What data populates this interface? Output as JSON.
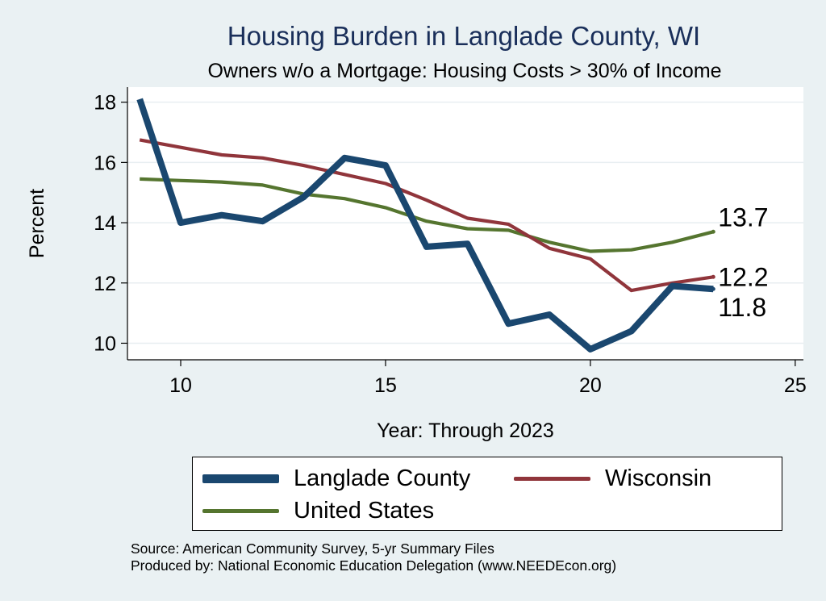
{
  "chart_data": {
    "type": "line",
    "title": "Housing Burden in Langlade County, WI",
    "subtitle": "Owners w/o a Mortgage: Housing Costs > 30% of Income",
    "xlabel": "Year: Through 2023",
    "ylabel": "Percent",
    "xlim": [
      8.7,
      25.2
    ],
    "ylim": [
      9.45,
      18.5
    ],
    "xticks": [
      10,
      15,
      20,
      25
    ],
    "yticks": [
      10,
      12,
      14,
      16,
      18
    ],
    "grid": true,
    "legend_position": "bottom",
    "series": [
      {
        "name": "Langlade County",
        "color": "#1a476f",
        "x": [
          9,
          10,
          11,
          12,
          13,
          14,
          15,
          16,
          17,
          18,
          19,
          20,
          21,
          22,
          23
        ],
        "values": [
          18.1,
          14.0,
          14.25,
          14.05,
          14.85,
          16.15,
          15.9,
          13.2,
          13.3,
          10.65,
          10.95,
          9.8,
          10.4,
          11.9,
          11.8
        ],
        "end_label": "11.8"
      },
      {
        "name": "Wisconsin",
        "color": "#90353b",
        "x": [
          9,
          10,
          11,
          12,
          13,
          14,
          15,
          16,
          17,
          18,
          19,
          20,
          21,
          22,
          23
        ],
        "values": [
          16.75,
          16.5,
          16.25,
          16.15,
          15.9,
          15.6,
          15.3,
          14.75,
          14.15,
          13.95,
          13.15,
          12.8,
          11.75,
          12.0,
          12.2
        ],
        "end_label": "12.2"
      },
      {
        "name": "United States",
        "color": "#55752f",
        "x": [
          9,
          10,
          11,
          12,
          13,
          14,
          15,
          16,
          17,
          18,
          19,
          20,
          21,
          22,
          23
        ],
        "values": [
          15.45,
          15.4,
          15.35,
          15.25,
          14.95,
          14.8,
          14.5,
          14.05,
          13.8,
          13.75,
          13.35,
          13.05,
          13.1,
          13.35,
          13.7
        ],
        "end_label": "13.7"
      }
    ]
  },
  "legend": {
    "items": [
      {
        "label": "Langlade County",
        "color": "#1a476f"
      },
      {
        "label": "Wisconsin",
        "color": "#90353b"
      },
      {
        "label": "United States",
        "color": "#55752f"
      }
    ]
  },
  "source": {
    "line1": "Source: American Community Survey, 5-yr Summary Files",
    "line2": "Produced by: National Economic Education Delegation (www.NEEDEcon.org)"
  }
}
